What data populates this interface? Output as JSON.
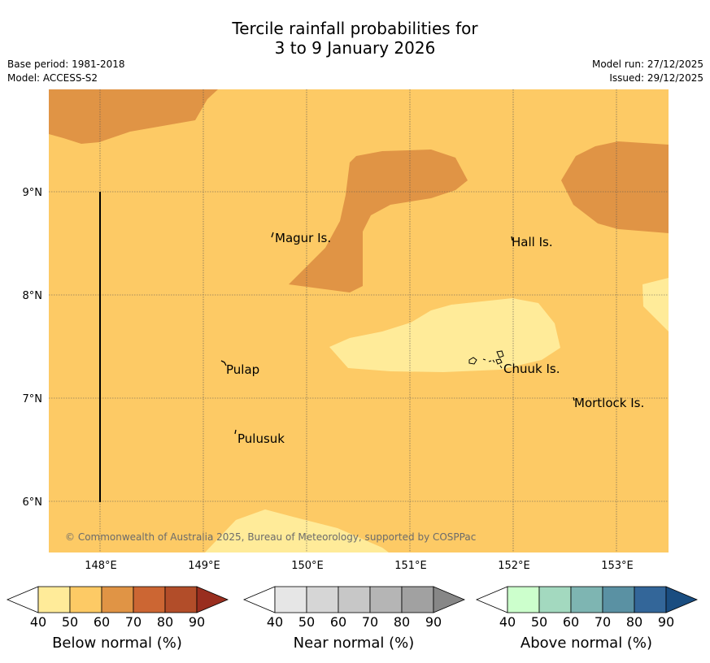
{
  "title": {
    "line1": "Tercile rainfall probabilities for",
    "line2": "3 to 9 January 2026"
  },
  "meta": {
    "base_period": "Base period: 1981-2018",
    "model": "Model: ACCESS-S2",
    "model_run": "Model run: 27/12/2025",
    "issued": "Issued: 29/12/2025"
  },
  "map": {
    "lat_ticks": [
      "9°N",
      "8°N",
      "7°N",
      "6°N"
    ],
    "lon_ticks": [
      "148°E",
      "149°E",
      "150°E",
      "151°E",
      "152°E",
      "153°E"
    ],
    "places": [
      "Magur Is.",
      "Hall Is.",
      "Pulap",
      "Chuuk Is.",
      "Mortlock Is.",
      "Pulusuk"
    ],
    "copyright": "© Commonwealth of Australia 2025, Bureau of Meteorology, supported by COSPPac"
  },
  "legend": {
    "below": {
      "label": "Below normal (%)",
      "colors": [
        "#ffeb99",
        "#fdca65",
        "#e09445",
        "#cc6633",
        "#b24d29",
        "#992e1f"
      ]
    },
    "near": {
      "label": "Near normal (%)",
      "colors": [
        "#e6e6e6",
        "#d6d6d6",
        "#c7c7c7",
        "#b5b5b5",
        "#a1a1a1",
        "#878787"
      ]
    },
    "above": {
      "label": "Above normal (%)",
      "colors": [
        "#ccffcc",
        "#a3d9bf",
        "#7eb5b2",
        "#5a91a3",
        "#336699",
        "#1a4d80"
      ]
    },
    "ticks": [
      "40",
      "50",
      "60",
      "70",
      "80",
      "90"
    ]
  }
}
